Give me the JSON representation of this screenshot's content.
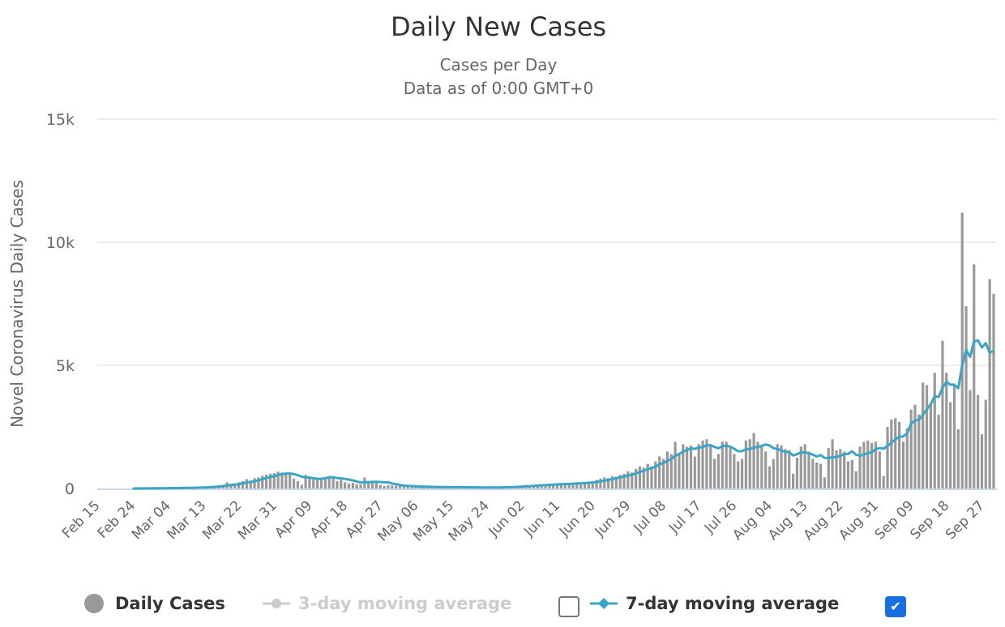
{
  "chart_data": {
    "type": "bar",
    "title": "Daily New Cases",
    "subtitle": [
      "Cases per Day",
      "Data as of 0:00 GMT+0"
    ],
    "ylabel": "Novel Coronavirus Daily Cases",
    "xlabel": "",
    "ylim": [
      0,
      15000
    ],
    "y_ticks": [
      0,
      5000,
      10000,
      15000
    ],
    "y_tick_labels": [
      "0",
      "5k",
      "10k",
      "15k"
    ],
    "x_start": "Feb 15",
    "x_tick_every_days": 9,
    "x_tick_labels": [
      "Feb 15",
      "Feb 24",
      "Mar 04",
      "Mar 13",
      "Mar 22",
      "Mar 31",
      "Apr 09",
      "Apr 18",
      "Apr 27",
      "May 06",
      "May 15",
      "May 24",
      "Jun 02",
      "Jun 11",
      "Jun 20",
      "Jun 29",
      "Jul 08",
      "Jul 17",
      "Jul 26",
      "Aug 04",
      "Aug 13",
      "Aug 22",
      "Aug 31",
      "Sep 09",
      "Sep 18",
      "Sep 27"
    ],
    "grid": true,
    "legend_position": "bottom",
    "series": [
      {
        "name": "Daily Cases",
        "type": "bar",
        "color": "#999999",
        "visible": true,
        "values": [
          0,
          0,
          0,
          0,
          0,
          0,
          0,
          0,
          0,
          5,
          3,
          5,
          10,
          8,
          10,
          15,
          12,
          20,
          25,
          18,
          22,
          25,
          30,
          35,
          40,
          45,
          50,
          60,
          70,
          90,
          100,
          130,
          150,
          250,
          170,
          200,
          250,
          300,
          380,
          320,
          420,
          450,
          520,
          560,
          600,
          620,
          680,
          650,
          600,
          560,
          400,
          300,
          150,
          550,
          500,
          450,
          420,
          380,
          450,
          480,
          500,
          300,
          350,
          250,
          200,
          230,
          180,
          160,
          450,
          300,
          320,
          280,
          150,
          100,
          130,
          120,
          110,
          100,
          90,
          80,
          70,
          75,
          60,
          65,
          60,
          55,
          50,
          55,
          60,
          45,
          50,
          50,
          45,
          40,
          45,
          50,
          40,
          45,
          40,
          45,
          50,
          40,
          45,
          55,
          60,
          70,
          80,
          100,
          120,
          130,
          110,
          140,
          150,
          160,
          140,
          180,
          200,
          170,
          190,
          200,
          220,
          210,
          240,
          230,
          260,
          250,
          300,
          350,
          400,
          450,
          420,
          500,
          480,
          550,
          600,
          700,
          650,
          800,
          900,
          850,
          1000,
          900,
          1100,
          1300,
          1200,
          1500,
          1400,
          1900,
          1400,
          1800,
          1700,
          1750,
          1300,
          1800,
          1950,
          2000,
          1800,
          1200,
          1400,
          1900,
          1900,
          1700,
          1400,
          1100,
          1200,
          1950,
          2000,
          2250,
          1900,
          1700,
          1500,
          900,
          1200,
          1800,
          1750,
          1600,
          1550,
          600,
          1250,
          1700,
          1800,
          1500,
          1200,
          1050,
          1000,
          450,
          1650,
          2000,
          1550,
          1600,
          1500,
          1100,
          1150,
          700,
          1700,
          1900,
          1950,
          1850,
          1900,
          1500,
          500,
          2500,
          2800,
          2850,
          2700,
          1900,
          2450,
          3200,
          3400,
          3000,
          4300,
          4200,
          3400,
          4700,
          3000,
          6000,
          4700,
          3500,
          4200,
          2400,
          11200,
          7400,
          4000,
          9100,
          3800,
          2200,
          3600,
          8500,
          7900
        ]
      },
      {
        "name": "3-day moving average",
        "type": "line",
        "color": "#cccccc",
        "visible": false
      },
      {
        "name": "7-day moving average",
        "type": "line",
        "color": "#3ba5c8",
        "visible": true,
        "window": 7
      }
    ]
  },
  "legend": {
    "daily_cases": "Daily Cases",
    "ma3": "3-day moving average",
    "ma7": "7-day moving average",
    "ma3_checked": false,
    "ma7_checked": true,
    "check_glyph": "✔"
  }
}
